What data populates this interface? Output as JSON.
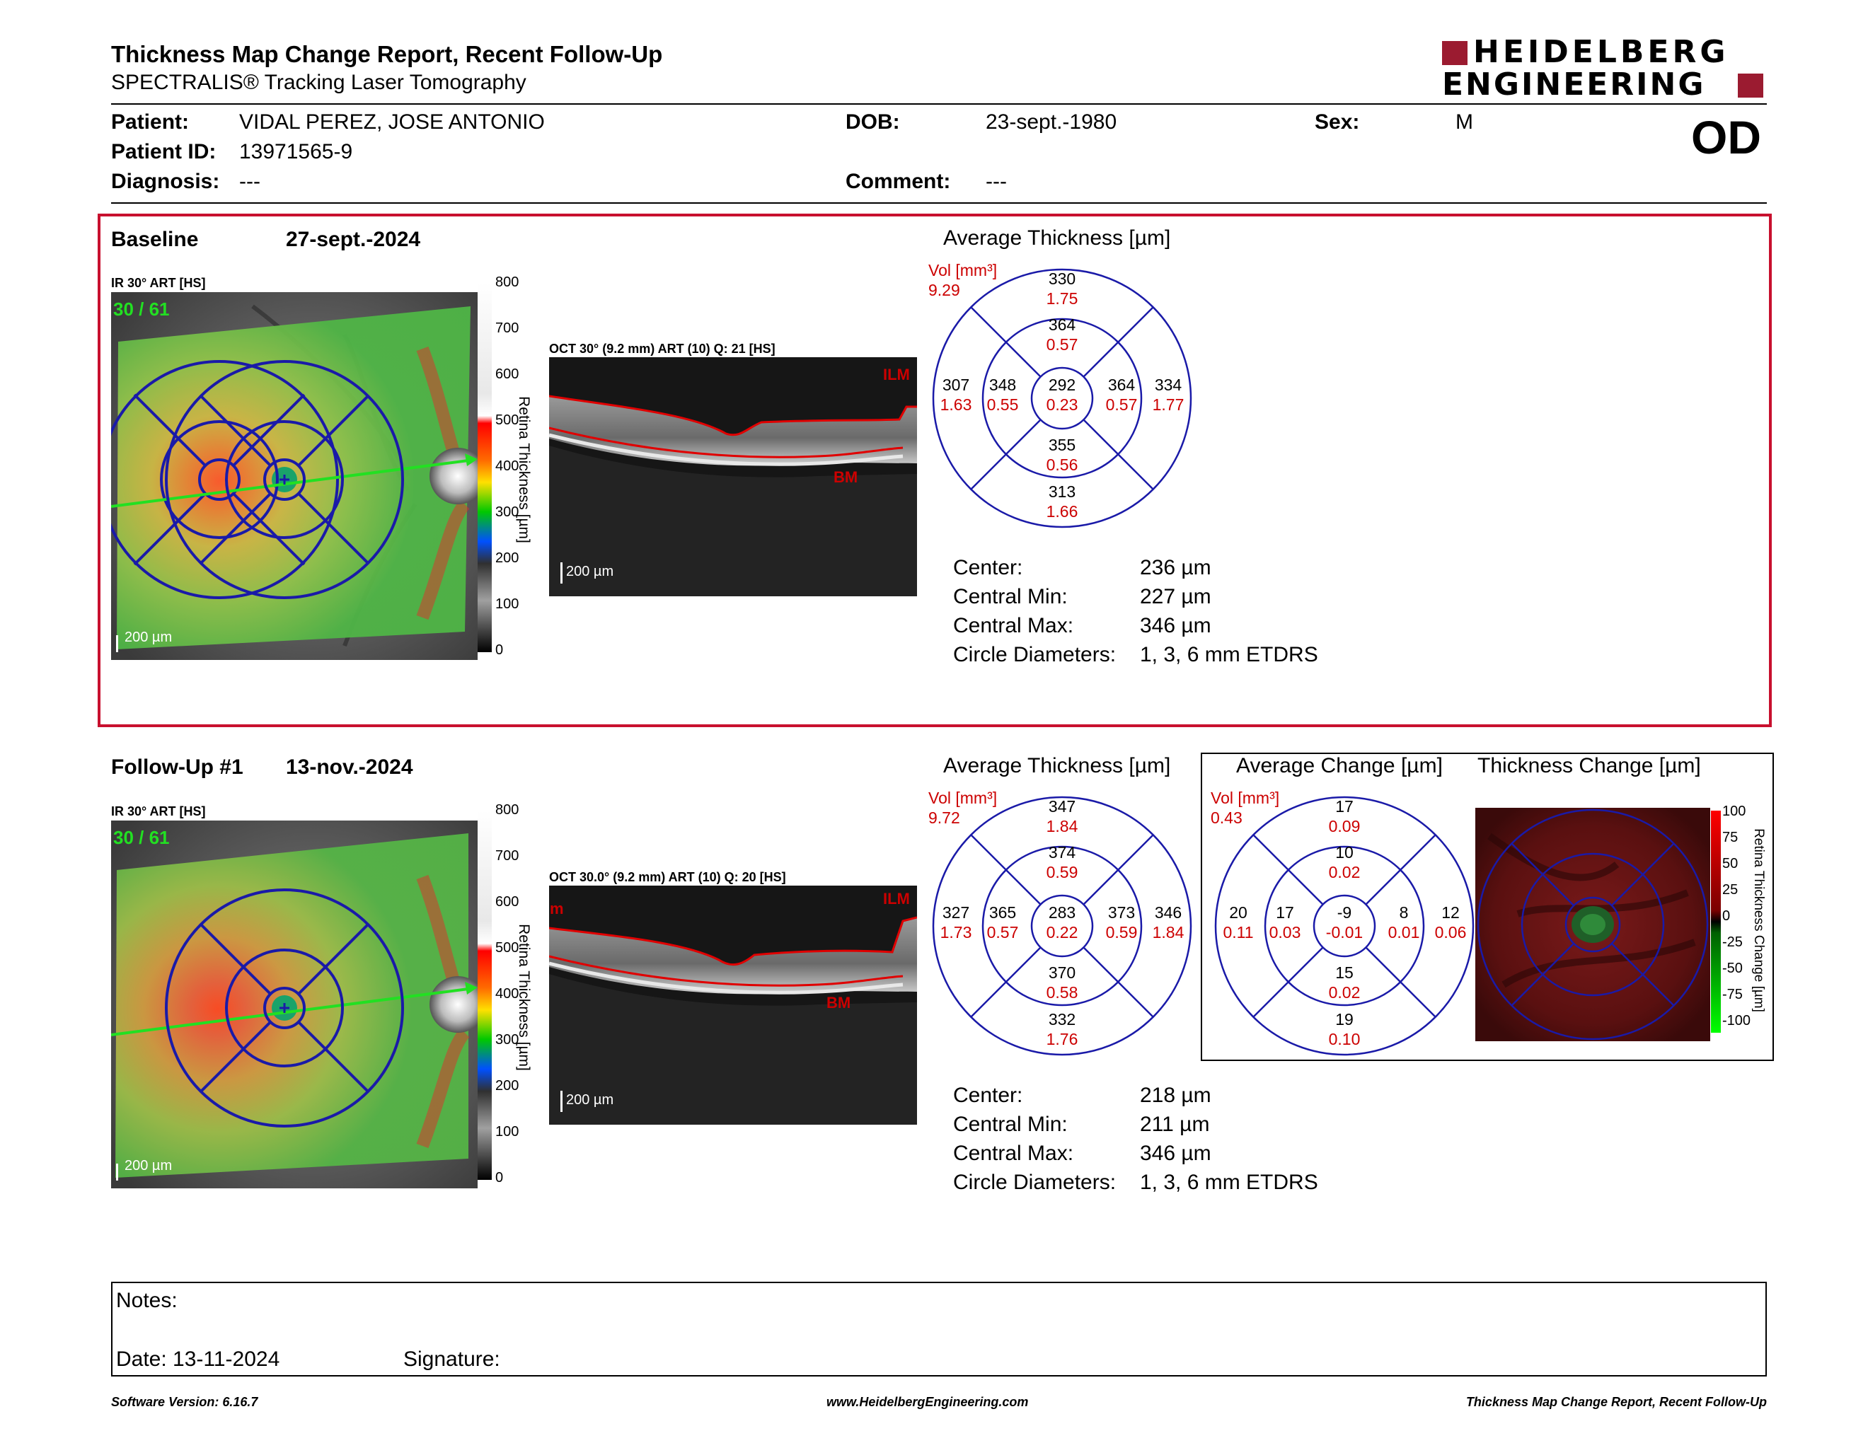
{
  "header": {
    "title": "Thickness Map Change Report, Recent Follow-Up",
    "subtitle": "SPECTRALIS® Tracking Laser Tomography",
    "logo_line1": "HEIDELBERG",
    "logo_line2": "ENGINEERING",
    "eye": "OD"
  },
  "patient": {
    "patient_label": "Patient:",
    "patient_value": "VIDAL PEREZ, JOSE ANTONIO",
    "id_label": "Patient ID:",
    "id_value": "13971565-9",
    "diagnosis_label": "Diagnosis:",
    "diagnosis_value": "---",
    "dob_label": "DOB:",
    "dob_value": "23-sept.-1980",
    "comment_label": "Comment:",
    "comment_value": "---",
    "sex_label": "Sex:",
    "sex_value": "M"
  },
  "baseline": {
    "label": "Baseline",
    "date": "27-sept.-2024",
    "ir_label": "IR 30° ART [HS]",
    "ir_counter": "30 / 61",
    "ir_scale": "200 µm",
    "oct_label": "OCT 30° (9.2 mm) ART (10) Q: 21 [HS]",
    "oct_scale": "200 µm",
    "ilm": "ILM",
    "bm": "BM",
    "avg_title": "Average Thickness [µm]",
    "vol_label": "Vol [mm³]",
    "vol_value": "9.29",
    "etdrs": {
      "outer_sup": "330",
      "outer_sup_v": "1.75",
      "inner_sup": "364",
      "inner_sup_v": "0.57",
      "outer_temp": "307",
      "outer_temp_v": "1.63",
      "inner_temp": "348",
      "inner_temp_v": "0.55",
      "center": "292",
      "center_v": "0.23",
      "inner_nas": "364",
      "inner_nas_v": "0.57",
      "outer_nas": "334",
      "outer_nas_v": "1.77",
      "inner_inf": "355",
      "inner_inf_v": "0.56",
      "outer_inf": "313",
      "outer_inf_v": "1.66"
    },
    "stats": {
      "center_label": "Center:",
      "center_value": "236 µm",
      "min_label": "Central Min:",
      "min_value": "227 µm",
      "max_label": "Central Max:",
      "max_value": "346 µm",
      "circ_label": "Circle Diameters:",
      "circ_value": "1, 3, 6 mm ETDRS"
    }
  },
  "followup": {
    "label": "Follow-Up #1",
    "date": "13-nov.-2024",
    "ir_label": "IR 30° ART [HS]",
    "ir_counter": "30 / 61",
    "ir_scale": "200 µm",
    "oct_label": "OCT 30.0° (9.2 mm) ART (10) Q: 20 [HS]",
    "oct_scale": "200 µm",
    "ilm": "ILM",
    "bm": "BM",
    "left_mark": "m",
    "avg_title": "Average Thickness [µm]",
    "vol_label": "Vol [mm³]",
    "vol_value": "9.72",
    "etdrs": {
      "outer_sup": "347",
      "outer_sup_v": "1.84",
      "inner_sup": "374",
      "inner_sup_v": "0.59",
      "outer_temp": "327",
      "outer_temp_v": "1.73",
      "inner_temp": "365",
      "inner_temp_v": "0.57",
      "center": "283",
      "center_v": "0.22",
      "inner_nas": "373",
      "inner_nas_v": "0.59",
      "outer_nas": "346",
      "outer_nas_v": "1.84",
      "inner_inf": "370",
      "inner_inf_v": "0.58",
      "outer_inf": "332",
      "outer_inf_v": "1.76"
    },
    "stats": {
      "center_label": "Center:",
      "center_value": "218 µm",
      "min_label": "Central Min:",
      "min_value": "211 µm",
      "max_label": "Central Max:",
      "max_value": "346 µm",
      "circ_label": "Circle Diameters:",
      "circ_value": "1, 3, 6 mm ETDRS"
    }
  },
  "change": {
    "avg_title": "Average Change [µm]",
    "map_title": "Thickness Change [µm]",
    "vol_label": "Vol [mm³]",
    "vol_value": "0.43",
    "etdrs": {
      "outer_sup": "17",
      "outer_sup_v": "0.09",
      "inner_sup": "10",
      "inner_sup_v": "0.02",
      "outer_temp": "20",
      "outer_temp_v": "0.11",
      "inner_temp": "17",
      "inner_temp_v": "0.03",
      "center": "-9",
      "center_v": "-0.01",
      "inner_nas": "8",
      "inner_nas_v": "0.01",
      "outer_nas": "12",
      "outer_nas_v": "0.06",
      "inner_inf": "15",
      "inner_inf_v": "0.02",
      "outer_inf": "19",
      "outer_inf_v": "0.10"
    },
    "colorbar_labels": [
      "100",
      "75",
      "50",
      "25",
      "0",
      "-25",
      "-50",
      "-75",
      "-100"
    ],
    "colorbar_title": "Retina Thickness Change [µm]"
  },
  "colorbar": {
    "labels": [
      "800",
      "700",
      "600",
      "500",
      "400",
      "300",
      "200",
      "100",
      "0"
    ],
    "title": "Retina Thickness [µm]"
  },
  "notes": {
    "notes_label": "Notes:",
    "date_label": "Date: 13-11-2024",
    "signature_label": "Signature:"
  },
  "footer": {
    "version": "Software Version: 6.16.7",
    "url": "www.HeidelbergEngineering.com",
    "report": "Thickness Map Change Report, Recent Follow-Up"
  },
  "colors": {
    "accent_red": "#cc0000",
    "frame_red": "#c8102e",
    "logo_red": "#9b1b30",
    "etdrs_blue": "#1a1aa8"
  }
}
